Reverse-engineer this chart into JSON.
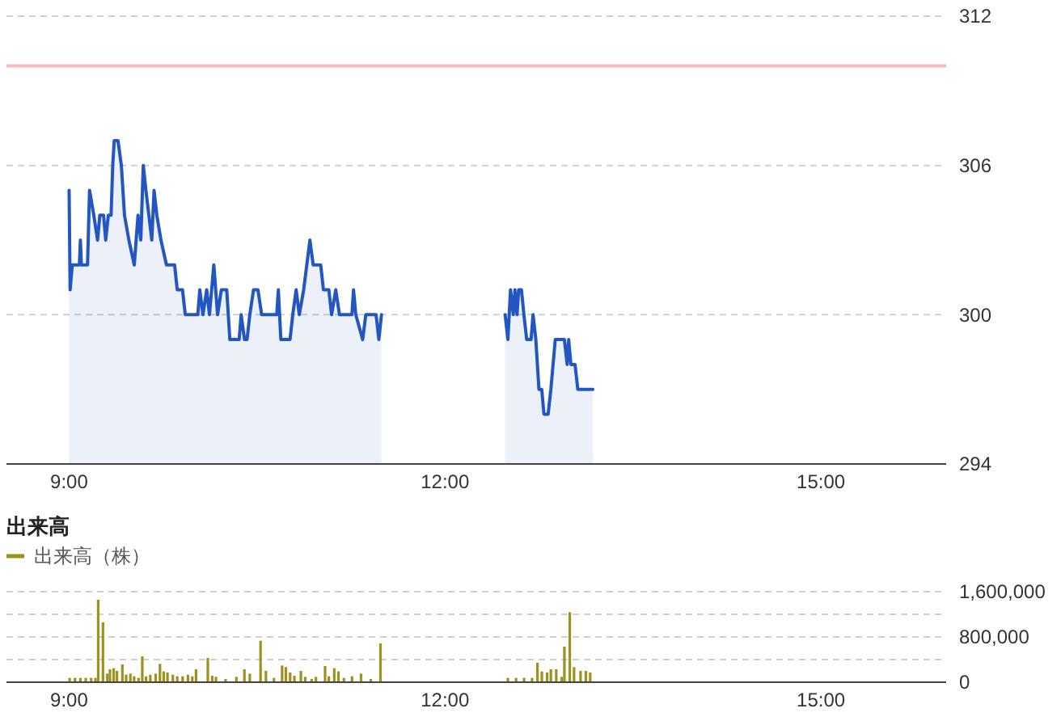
{
  "chart_data": [
    {
      "type": "area",
      "xlim": [
        8.5,
        16
      ],
      "xticks": [
        {
          "value": 9,
          "label": "9:00"
        },
        {
          "value": 12,
          "label": "12:00"
        },
        {
          "value": 15,
          "label": "15:00"
        }
      ],
      "ylim": [
        294,
        312
      ],
      "yticks": [
        294,
        300,
        306,
        312
      ],
      "grid": "y",
      "legend": false,
      "ref_lines": [
        {
          "axis": "y",
          "value": 310,
          "color": "#f8b8c2"
        }
      ],
      "series": [
        {
          "color": "#2456c2",
          "x": [
            9.0,
            9.008,
            9.025,
            9.082,
            9.09,
            9.098,
            9.147,
            9.163,
            9.197,
            9.227,
            9.245,
            9.275,
            9.292,
            9.313,
            9.335,
            9.348,
            9.36,
            9.39,
            9.417,
            9.442,
            9.477,
            9.52,
            9.55,
            9.572,
            9.592,
            9.613,
            9.66,
            9.678,
            9.7,
            9.733,
            9.777,
            9.842,
            9.863,
            9.905,
            9.927,
            10.027,
            10.043,
            10.068,
            10.098,
            10.12,
            10.155,
            10.185,
            10.215,
            10.258,
            10.283,
            10.357,
            10.373,
            10.4,
            10.42,
            10.442,
            10.472,
            10.507,
            10.537,
            10.657,
            10.67,
            10.69,
            10.763,
            10.785,
            10.812,
            10.837,
            10.872,
            10.922,
            10.948,
            11.008,
            11.03,
            11.073,
            11.095,
            11.128,
            11.158,
            11.257,
            11.27,
            11.288,
            11.343,
            11.368,
            11.45,
            11.472,
            11.493,
            12.0,
            12.48,
            12.502,
            12.523,
            12.545,
            12.558,
            12.575,
            12.588,
            12.61,
            12.63,
            12.652,
            12.687,
            12.703,
            12.725,
            12.75,
            12.772,
            12.79,
            12.823,
            12.845,
            12.88,
            12.953,
            12.975,
            12.987,
            13.005,
            13.038,
            13.06,
            13.18
          ],
          "values": [
            305,
            301,
            302,
            302,
            303,
            302,
            302,
            305,
            304,
            303,
            304,
            304,
            303,
            304,
            304,
            306,
            307,
            307,
            306,
            304,
            303,
            302,
            304,
            303,
            306,
            305,
            303,
            305,
            304,
            303,
            302,
            302,
            301,
            301,
            300,
            300,
            301,
            300,
            301,
            300,
            302,
            300,
            301,
            301,
            299,
            299,
            300,
            299,
            299,
            300,
            301,
            301,
            300,
            300,
            301,
            299,
            299,
            300,
            301,
            300,
            301,
            303,
            302,
            302,
            301,
            301,
            300,
            301,
            300,
            300,
            301,
            300,
            299,
            300,
            300,
            299,
            300,
            null,
            300,
            299,
            301,
            300,
            301,
            300,
            301,
            301,
            300,
            299,
            299,
            300,
            299,
            297,
            297,
            296,
            296,
            297,
            299,
            299,
            298,
            299,
            298,
            298,
            297,
            297
          ]
        }
      ]
    },
    {
      "type": "bar",
      "title": "出来高",
      "xlim": [
        8.5,
        16
      ],
      "xticks": [
        {
          "value": 9,
          "label": "9:00"
        },
        {
          "value": 12,
          "label": "12:00"
        },
        {
          "value": 15,
          "label": "15:00"
        }
      ],
      "ylim": [
        0,
        1600000
      ],
      "yticks": [
        0,
        {
          "value": 400000,
          "label": null
        },
        {
          "value": 800000,
          "label": "800,000"
        },
        {
          "value": 1200000,
          "label": null
        },
        {
          "value": 1600000,
          "label": "1,600,000"
        }
      ],
      "grid": "y",
      "legend": "top left",
      "series": [
        {
          "name": "出来高（株）",
          "color": "#9e921f",
          "x": [
            9.004,
            9.047,
            9.09,
            9.133,
            9.176,
            9.21,
            9.232,
            9.27,
            9.305,
            9.326,
            9.356,
            9.382,
            9.425,
            9.455,
            9.489,
            9.519,
            9.554,
            9.584,
            9.614,
            9.648,
            9.691,
            9.725,
            9.755,
            9.785,
            9.828,
            9.863,
            9.906,
            9.948,
            9.983,
            10.013,
            10.107,
            10.142,
            10.172,
            10.249,
            10.335,
            10.399,
            10.442,
            10.528,
            10.571,
            10.635,
            10.7,
            10.73,
            10.764,
            10.798,
            10.85,
            10.884,
            10.936,
            10.97,
            11.043,
            11.073,
            11.116,
            11.15,
            11.193,
            11.258,
            11.33,
            11.408,
            11.485,
            12.502,
            12.567,
            12.631,
            12.695,
            12.738,
            12.773,
            12.815,
            12.845,
            12.888,
            12.931,
            12.953,
            12.996,
            13.03,
            13.082,
            13.124,
            13.159
          ],
          "values": [
            76000,
            76000,
            76000,
            76000,
            76000,
            76000,
            1457000,
            1057000,
            152000,
            229000,
            248000,
            200000,
            314000,
            133000,
            152000,
            105000,
            76000,
            457000,
            105000,
            133000,
            152000,
            324000,
            190000,
            171000,
            133000,
            105000,
            105000,
            133000,
            105000,
            229000,
            429000,
            114000,
            95000,
            57000,
            95000,
            229000,
            152000,
            733000,
            200000,
            76000,
            295000,
            267000,
            171000,
            114000,
            200000,
            95000,
            57000,
            95000,
            286000,
            105000,
            248000,
            190000,
            76000,
            105000,
            152000,
            57000,
            686000,
            76000,
            76000,
            76000,
            76000,
            343000,
            190000,
            171000,
            229000,
            229000,
            95000,
            629000,
            1238000,
            267000,
            200000,
            200000,
            171000
          ]
        }
      ]
    }
  ]
}
